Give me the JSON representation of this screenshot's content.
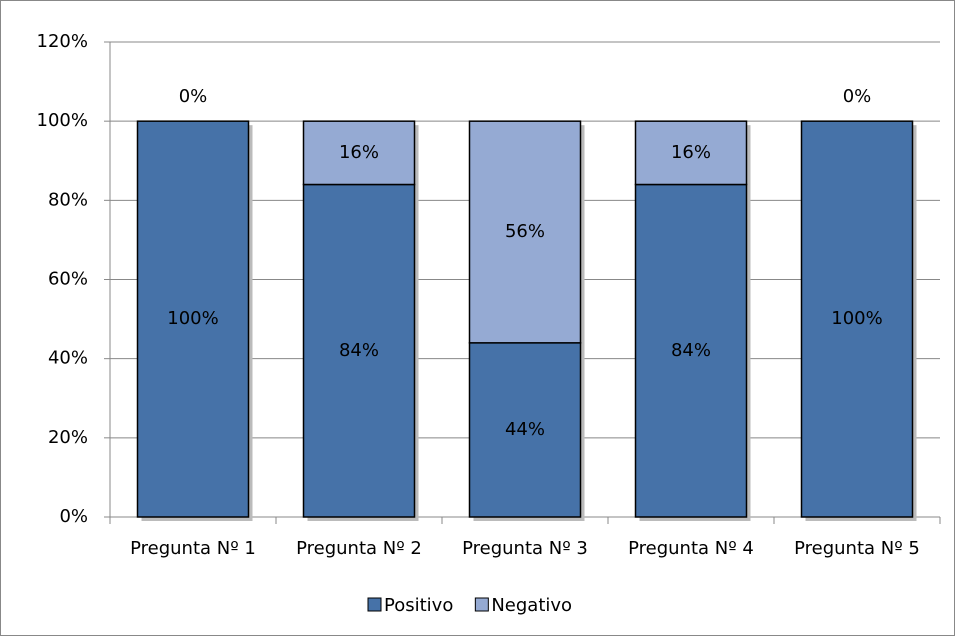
{
  "chart_data": {
    "type": "stacked_bar",
    "categories": [
      "Pregunta Nº 1",
      "Pregunta Nº 2",
      "Pregunta Nº 3",
      "Pregunta Nº 4",
      "Pregunta Nº 5"
    ],
    "series": [
      {
        "name": "Positivo",
        "color": "#4672a8",
        "values": [
          100,
          84,
          44,
          84,
          100
        ],
        "value_labels": [
          "100%",
          "84%",
          "44%",
          "84%",
          "100%"
        ]
      },
      {
        "name": "Negativo",
        "color": "#95aad3",
        "values": [
          0,
          16,
          56,
          16,
          0
        ],
        "value_labels": [
          "0%",
          "16%",
          "56%",
          "16%",
          "0%"
        ]
      }
    ],
    "ylim": [
      0,
      120
    ],
    "yticks": [
      {
        "value": 0,
        "label": "0%"
      },
      {
        "value": 20,
        "label": "20%"
      },
      {
        "value": 40,
        "label": "40%"
      },
      {
        "value": 60,
        "label": "60%"
      },
      {
        "value": 80,
        "label": "80%"
      },
      {
        "value": 100,
        "label": "100%"
      },
      {
        "value": 120,
        "label": "120%"
      }
    ],
    "grid": true,
    "legend": "bottom"
  }
}
